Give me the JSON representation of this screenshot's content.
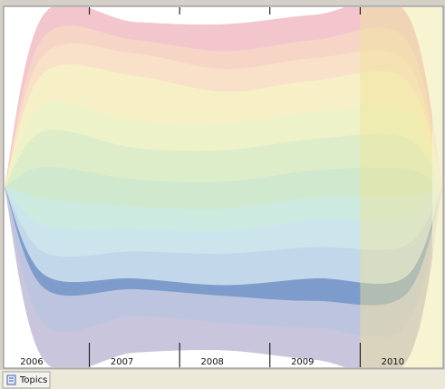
{
  "chart_data": {
    "type": "streamgraph",
    "categories": [
      "2006",
      "2007",
      "2008",
      "2009",
      "2010"
    ],
    "ylim": [
      -200,
      200
    ],
    "highlight_index": 4,
    "series": [
      {
        "color": "#f3c6ce",
        "values": [
          25,
          20,
          30,
          28,
          30
        ]
      },
      {
        "color": "#f6d5c6",
        "values": [
          20,
          15,
          20,
          20,
          25
        ]
      },
      {
        "color": "#f8e1c8",
        "values": [
          20,
          25,
          25,
          25,
          20
        ]
      },
      {
        "color": "#f7efc6",
        "values": [
          35,
          50,
          35,
          35,
          35
        ]
      },
      {
        "color": "#eef2c8",
        "values": [
          30,
          30,
          30,
          30,
          30
        ]
      },
      {
        "color": "#ddedca",
        "values": [
          40,
          35,
          35,
          35,
          35
        ]
      },
      {
        "color": "#d0e8cd",
        "values": [
          35,
          30,
          30,
          30,
          30
        ]
      },
      {
        "color": "#cdeae0",
        "values": [
          30,
          25,
          25,
          25,
          25
        ]
      },
      {
        "color": "#cce5ec",
        "values": [
          30,
          25,
          25,
          30,
          30
        ]
      },
      {
        "color": "#c3d7ea",
        "values": [
          25,
          30,
          35,
          35,
          35
        ]
      },
      {
        "color": "#7e9ccb",
        "values": [
          15,
          12,
          12,
          25,
          20
        ]
      },
      {
        "color": "#bdc4e0",
        "values": [
          40,
          30,
          30,
          30,
          35
        ]
      },
      {
        "color": "#c9c5dc",
        "values": [
          40,
          40,
          30,
          35,
          40
        ]
      }
    ]
  },
  "ui": {
    "tab": "Topics"
  }
}
